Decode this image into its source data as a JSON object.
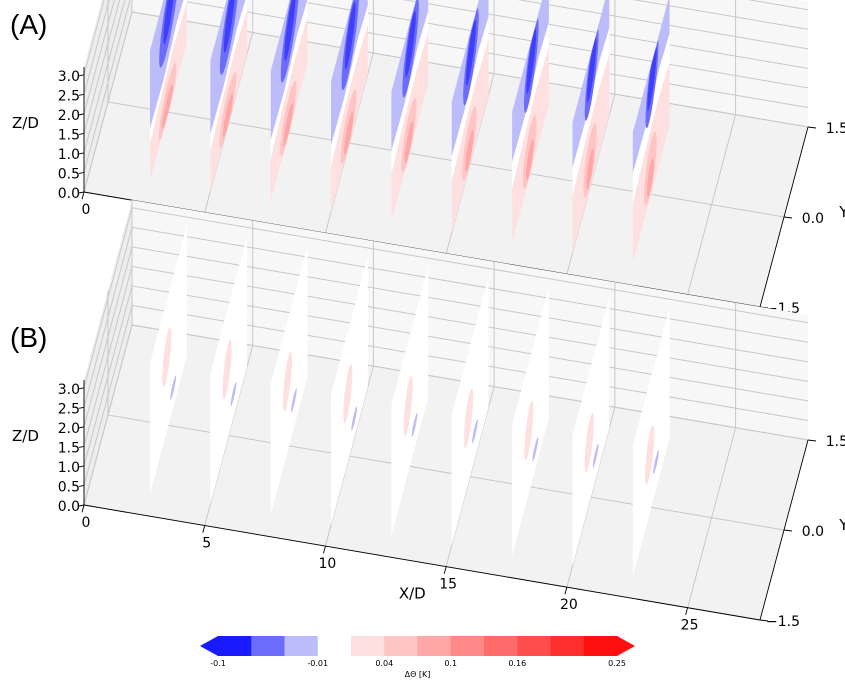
{
  "figure_labels": [
    "(A)",
    "(B)"
  ],
  "chart_data": [
    {
      "type": "contour",
      "panel": "(A)",
      "xlabel": "X/D",
      "ylabel": "Y/D",
      "zlabel": "Z/D",
      "x_ticks": [
        "0",
        "5",
        "10",
        "15",
        "20",
        "25"
      ],
      "y_ticks": [
        "−1.5",
        "0.0",
        "1.5"
      ],
      "z_ticks": [
        "0.0",
        "0.5",
        "1.0",
        "1.5",
        "2.0",
        "2.5",
        "3.0"
      ],
      "xlim": [
        0,
        28
      ],
      "ylim": [
        -1.5,
        1.5
      ],
      "zlim": [
        0,
        3.2
      ],
      "slice_x": [
        2.5,
        5,
        7.5,
        10,
        12.5,
        15,
        17.5,
        20,
        22.5
      ],
      "grid": true,
      "description_levels": {
        "blue_core_min": -0.1,
        "red_core_max": 0.16
      }
    },
    {
      "type": "contour",
      "panel": "(B)",
      "xlabel": "X/D",
      "ylabel": "Y/D",
      "zlabel": "Z/D",
      "x_ticks": [
        "0",
        "5",
        "10",
        "15",
        "20",
        "25"
      ],
      "y_ticks": [
        "−1.5",
        "0.0",
        "1.5"
      ],
      "z_ticks": [
        "0.0",
        "0.5",
        "1.0",
        "1.5",
        "2.0",
        "2.5",
        "3.0"
      ],
      "xlim": [
        0,
        28
      ],
      "ylim": [
        -1.5,
        1.5
      ],
      "zlim": [
        0,
        3.2
      ],
      "slice_x": [
        2.5,
        5,
        7.5,
        10,
        12.5,
        15,
        17.5,
        20,
        22.5
      ],
      "grid": true
    }
  ],
  "colorbar": {
    "label": "ΔΘ [K]",
    "tick_labels": [
      "-0.1",
      "-0.01",
      "0.04",
      "0.1",
      "0.16",
      "0.25"
    ],
    "levels": [
      -0.1,
      -0.07,
      -0.04,
      -0.01,
      0.01,
      0.04,
      0.07,
      0.1,
      0.13,
      0.16,
      0.19,
      0.22,
      0.25
    ],
    "colors": [
      "#1a1aff",
      "#6c6cfa",
      "#bcbcfa",
      "#ffffff",
      "#ffe0e0",
      "#ffc4c4",
      "#ffa6a6",
      "#ff8888",
      "#ff6a6a",
      "#ff4c4c",
      "#ff2e2e",
      "#ff1010"
    ],
    "extend": "both"
  }
}
